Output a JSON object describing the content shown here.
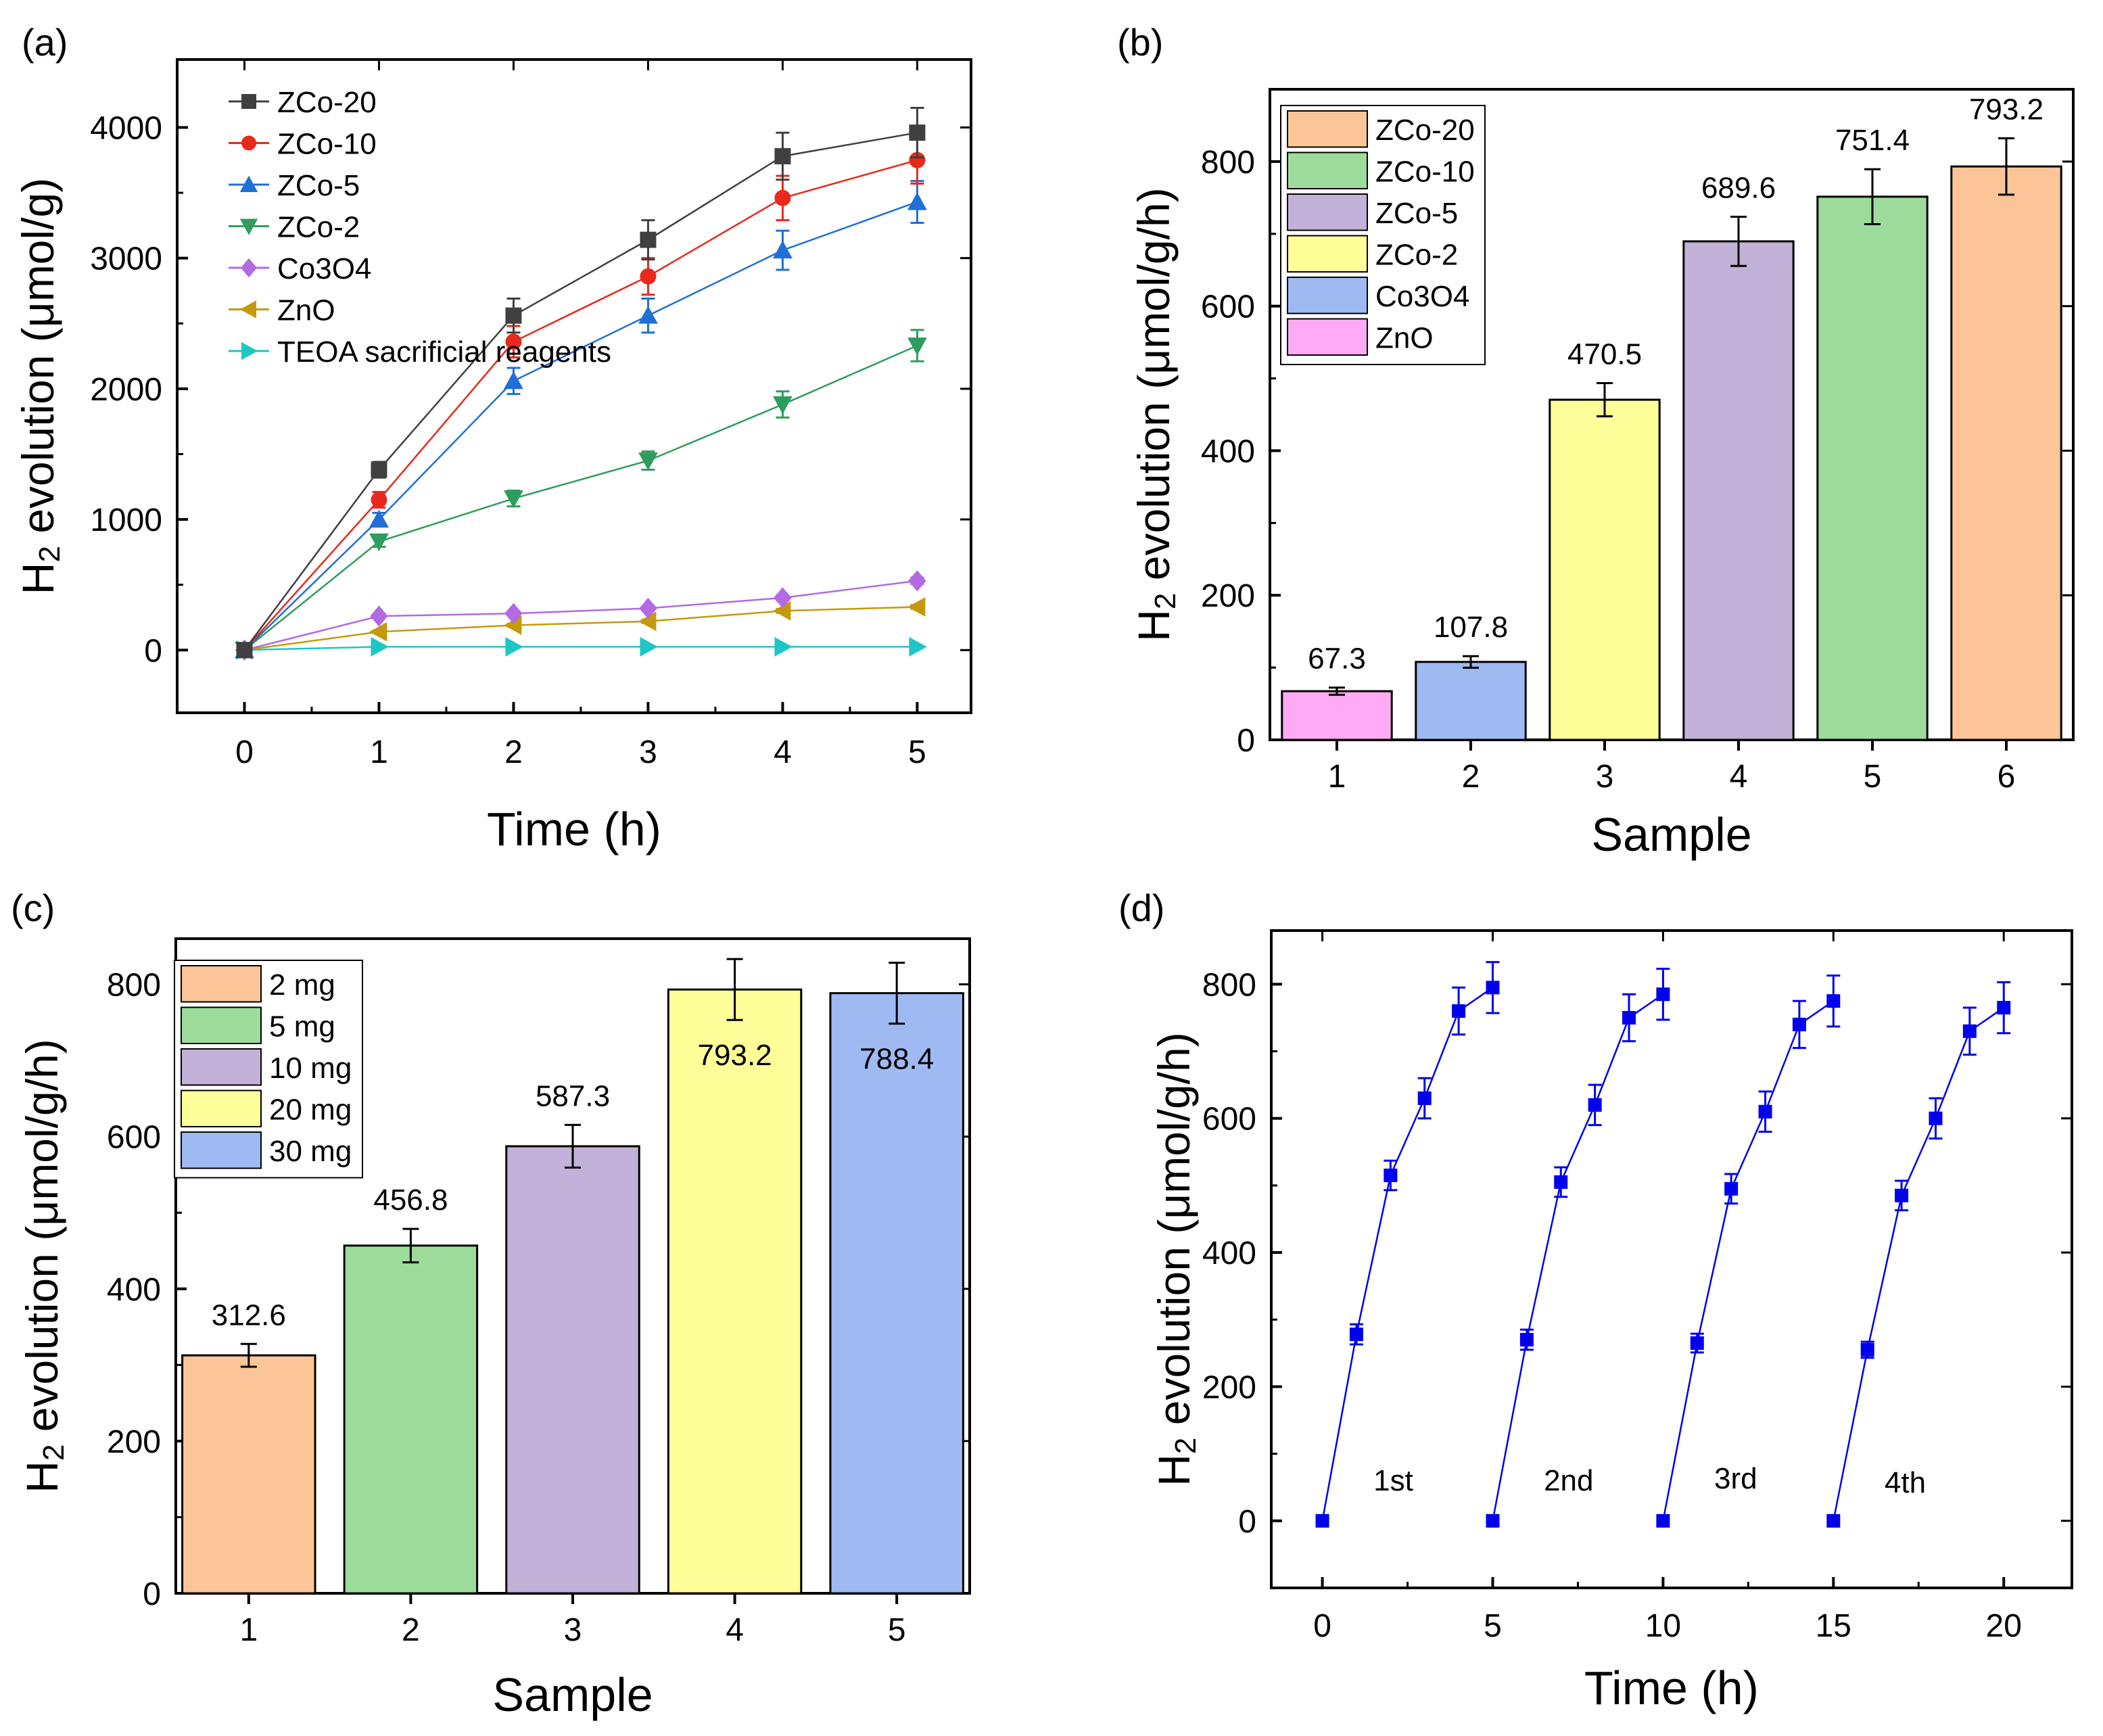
{
  "chart_data": [
    {
      "id": "a",
      "panel_label": "(a)",
      "type": "line",
      "xlabel": "Time (h)",
      "ylabel_main": "H",
      "ylabel_sub": "2",
      "ylabel_rest": " evolution (μmol/g)",
      "xlim": [
        -0.5,
        5.4
      ],
      "ylim": [
        -480,
        4520
      ],
      "xticks": [
        0,
        1,
        2,
        3,
        4,
        5
      ],
      "yticks": [
        0,
        1000,
        2000,
        3000,
        4000
      ],
      "x": [
        0,
        1,
        2,
        3,
        4,
        5
      ],
      "series": [
        {
          "name": "ZCo-20",
          "color": "#404040",
          "marker": "square",
          "values": [
            0,
            1380,
            2560,
            3140,
            3780,
            3960
          ],
          "errors": [
            0,
            60,
            130,
            150,
            180,
            190
          ]
        },
        {
          "name": "ZCo-10",
          "color": "#e8291c",
          "marker": "circle",
          "values": [
            0,
            1150,
            2360,
            2860,
            3460,
            3750
          ],
          "errors": [
            0,
            60,
            120,
            140,
            170,
            180
          ]
        },
        {
          "name": "ZCo-5",
          "color": "#1f6fd6",
          "marker": "triangle-up",
          "values": [
            0,
            1000,
            2060,
            2560,
            3060,
            3430
          ],
          "errors": [
            0,
            50,
            100,
            130,
            150,
            160
          ]
        },
        {
          "name": "ZCo-2",
          "color": "#2e9d5e",
          "marker": "triangle-down",
          "values": [
            0,
            830,
            1160,
            1450,
            1880,
            2330
          ],
          "errors": [
            0,
            40,
            60,
            70,
            100,
            120
          ]
        },
        {
          "name": "Co3O4",
          "color": "#b36ae2",
          "marker": "diamond",
          "values": [
            0,
            260,
            280,
            320,
            400,
            530
          ],
          "errors": [
            0,
            15,
            15,
            18,
            20,
            25
          ]
        },
        {
          "name": "ZnO",
          "color": "#c49a0c",
          "marker": "triangle-left",
          "values": [
            0,
            140,
            190,
            220,
            300,
            330
          ],
          "errors": [
            0,
            10,
            10,
            12,
            15,
            15
          ]
        },
        {
          "name": "TEOA sacrificial reagents",
          "color": "#1ec6c6",
          "marker": "triangle-right",
          "values": [
            0,
            25,
            25,
            25,
            25,
            25
          ],
          "errors": [
            0,
            0,
            0,
            0,
            0,
            0
          ]
        }
      ]
    },
    {
      "id": "b",
      "panel_label": "(b)",
      "type": "bar",
      "xlabel": "Sample",
      "ylabel_main": "H",
      "ylabel_sub": "2",
      "ylabel_rest": " evolution (μmol/g/h)",
      "xlim": [
        0.5,
        6.5
      ],
      "ylim": [
        0,
        900
      ],
      "yticks": [
        0,
        200,
        400,
        600,
        800
      ],
      "categories": [
        "1",
        "2",
        "3",
        "4",
        "5",
        "6"
      ],
      "values": [
        67.3,
        107.8,
        470.5,
        689.6,
        751.4,
        793.2
      ],
      "errors": [
        5,
        8,
        23,
        34,
        38,
        39
      ],
      "data_labels": [
        "67.3",
        "107.8",
        "470.5",
        "689.6",
        "751.4",
        "793.2"
      ],
      "colors": [
        "#ffaaf5",
        "#9fbaf2",
        "#ffff99",
        "#c2b1d8",
        "#9ddb9b",
        "#fbc598"
      ],
      "legend": [
        {
          "name": "ZCo-20",
          "color": "#fbc598"
        },
        {
          "name": "ZCo-10",
          "color": "#9ddb9b"
        },
        {
          "name": "ZCo-5",
          "color": "#c2b1d8"
        },
        {
          "name": "ZCo-2",
          "color": "#ffff99"
        },
        {
          "name": "Co3O4",
          "color": "#9fbaf2"
        },
        {
          "name": "ZnO",
          "color": "#ffaaf5"
        }
      ]
    },
    {
      "id": "c",
      "panel_label": "(c)",
      "type": "bar",
      "xlabel": "Sample",
      "ylabel_main": "H",
      "ylabel_sub": "2",
      "ylabel_rest": " evolution (μmol/g/h)",
      "xlim": [
        0.55,
        5.45
      ],
      "ylim": [
        0,
        860
      ],
      "yticks": [
        0,
        200,
        400,
        600,
        800
      ],
      "categories": [
        "1",
        "2",
        "3",
        "4",
        "5"
      ],
      "values": [
        312.6,
        456.8,
        587.3,
        793.2,
        788.4
      ],
      "errors": [
        15,
        22,
        28,
        40,
        40
      ],
      "data_labels": [
        "312.6",
        "456.8",
        "587.3",
        "793.2",
        "788.4"
      ],
      "label_inside": [
        false,
        false,
        false,
        true,
        true
      ],
      "colors": [
        "#fbc598",
        "#9ddb9b",
        "#c2b1d8",
        "#ffff99",
        "#9fbaf2"
      ],
      "legend": [
        {
          "name": "2 mg",
          "color": "#fbc598"
        },
        {
          "name": "5 mg",
          "color": "#9ddb9b"
        },
        {
          "name": "10 mg",
          "color": "#c2b1d8"
        },
        {
          "name": "20 mg",
          "color": "#ffff99"
        },
        {
          "name": "30 mg",
          "color": "#9fbaf2"
        }
      ]
    },
    {
      "id": "d",
      "panel_label": "(d)",
      "type": "line",
      "xlabel": "Time (h)",
      "ylabel_main": "H",
      "ylabel_sub": "2",
      "ylabel_rest": " evolution (μmol/g/h)",
      "xlim": [
        -1.5,
        22
      ],
      "ylim": [
        -100,
        880
      ],
      "xticks": [
        0,
        5,
        10,
        15,
        20
      ],
      "yticks": [
        0,
        200,
        400,
        600,
        800
      ],
      "color": "#0000ee",
      "cycles": [
        {
          "label": "1st",
          "label_x": 1.5,
          "label_y": 45,
          "x": [
            0,
            1,
            2,
            3,
            4,
            5
          ],
          "values": [
            0,
            278,
            515,
            630,
            760,
            795
          ],
          "errors": [
            0,
            15,
            22,
            30,
            35,
            38
          ]
        },
        {
          "label": "2nd",
          "label_x": 6.5,
          "label_y": 45,
          "x": [
            5,
            6,
            7,
            8,
            9,
            10
          ],
          "values": [
            0,
            270,
            505,
            620,
            750,
            785
          ],
          "errors": [
            0,
            15,
            22,
            30,
            35,
            38
          ]
        },
        {
          "label": "3rd",
          "label_x": 11.5,
          "label_y": 48,
          "x": [
            10,
            11,
            12,
            13,
            14,
            15
          ],
          "values": [
            0,
            265,
            495,
            610,
            740,
            775
          ],
          "errors": [
            0,
            14,
            22,
            30,
            35,
            38
          ]
        },
        {
          "label": "4th",
          "label_x": 16.5,
          "label_y": 42,
          "x": [
            15,
            16,
            17,
            18,
            19,
            20
          ],
          "values": [
            0,
            255,
            485,
            600,
            730,
            765
          ],
          "errors": [
            0,
            12,
            22,
            30,
            35,
            38
          ]
        }
      ]
    }
  ]
}
